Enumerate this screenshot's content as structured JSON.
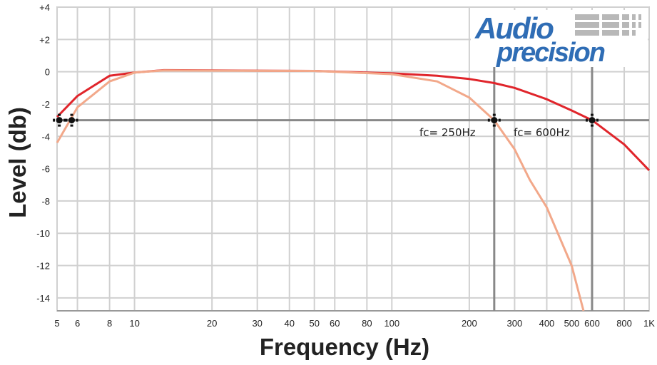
{
  "chart_data": {
    "type": "line",
    "xlabel": "Frequency (Hz)",
    "ylabel": "Level (db)",
    "x_scale": "log",
    "xlim": [
      5,
      1000
    ],
    "ylim": [
      -14.8,
      4
    ],
    "grid": true,
    "x_ticks": [
      {
        "value": 5,
        "label": "5"
      },
      {
        "value": 6,
        "label": "6"
      },
      {
        "value": 8,
        "label": "8"
      },
      {
        "value": 10,
        "label": "10"
      },
      {
        "value": 20,
        "label": "20"
      },
      {
        "value": 30,
        "label": "30"
      },
      {
        "value": 40,
        "label": "40"
      },
      {
        "value": 50,
        "label": "50"
      },
      {
        "value": 60,
        "label": "60"
      },
      {
        "value": 80,
        "label": "80"
      },
      {
        "value": 100,
        "label": "100"
      },
      {
        "value": 200,
        "label": "200"
      },
      {
        "value": 300,
        "label": "300"
      },
      {
        "value": 400,
        "label": "400"
      },
      {
        "value": 500,
        "label": "500"
      },
      {
        "value": 600,
        "label": "600"
      },
      {
        "value": 800,
        "label": "800"
      },
      {
        "value": 1000,
        "label": "1K"
      }
    ],
    "y_ticks": [
      {
        "value": 4,
        "label": "+4"
      },
      {
        "value": 2,
        "label": "+2"
      },
      {
        "value": 0,
        "label": "0"
      },
      {
        "value": -2,
        "label": "-2"
      },
      {
        "value": -4,
        "label": "-4"
      },
      {
        "value": -6,
        "label": "-6"
      },
      {
        "value": -8,
        "label": "-8"
      },
      {
        "value": -10,
        "label": "-10"
      },
      {
        "value": -12,
        "label": "-12"
      },
      {
        "value": -14,
        "label": "-14"
      }
    ],
    "series": [
      {
        "color": "#e0252b",
        "x": [
          5,
          6,
          8,
          10,
          13,
          20,
          50,
          100,
          150,
          200,
          250,
          300,
          400,
          500,
          600,
          800,
          1000
        ],
        "y": [
          -2.8,
          -1.5,
          -0.25,
          -0.05,
          0.1,
          0.08,
          0.05,
          -0.1,
          -0.25,
          -0.45,
          -0.7,
          -1.0,
          -1.7,
          -2.4,
          -3.0,
          -4.5,
          -6.1
        ]
      },
      {
        "color": "#f2a88a",
        "x": [
          5,
          6,
          8,
          10,
          13,
          20,
          50,
          100,
          150,
          200,
          250,
          300,
          344,
          400,
          500,
          556
        ],
        "y": [
          -4.4,
          -2.2,
          -0.6,
          -0.05,
          0.08,
          0.07,
          0.05,
          -0.15,
          -0.6,
          -1.6,
          -3.0,
          -4.8,
          -6.7,
          -8.4,
          -12.0,
          -14.8
        ]
      }
    ],
    "reference_lines": {
      "y": -3,
      "x": [
        250,
        600
      ],
      "color": "#888888"
    },
    "markers": [
      {
        "x": 5.1,
        "y": -3
      },
      {
        "x": 5.7,
        "y": -3
      },
      {
        "x": 250,
        "y": -3
      },
      {
        "x": 600,
        "y": -3
      }
    ],
    "annotations": [
      {
        "text": "fc= 250Hz",
        "x": 250,
        "y": -3
      },
      {
        "text": "fc= 600Hz",
        "x": 600,
        "y": -3
      }
    ],
    "logo": {
      "line1": "Audio",
      "line2": "precision",
      "color": "#2f6db5"
    }
  }
}
